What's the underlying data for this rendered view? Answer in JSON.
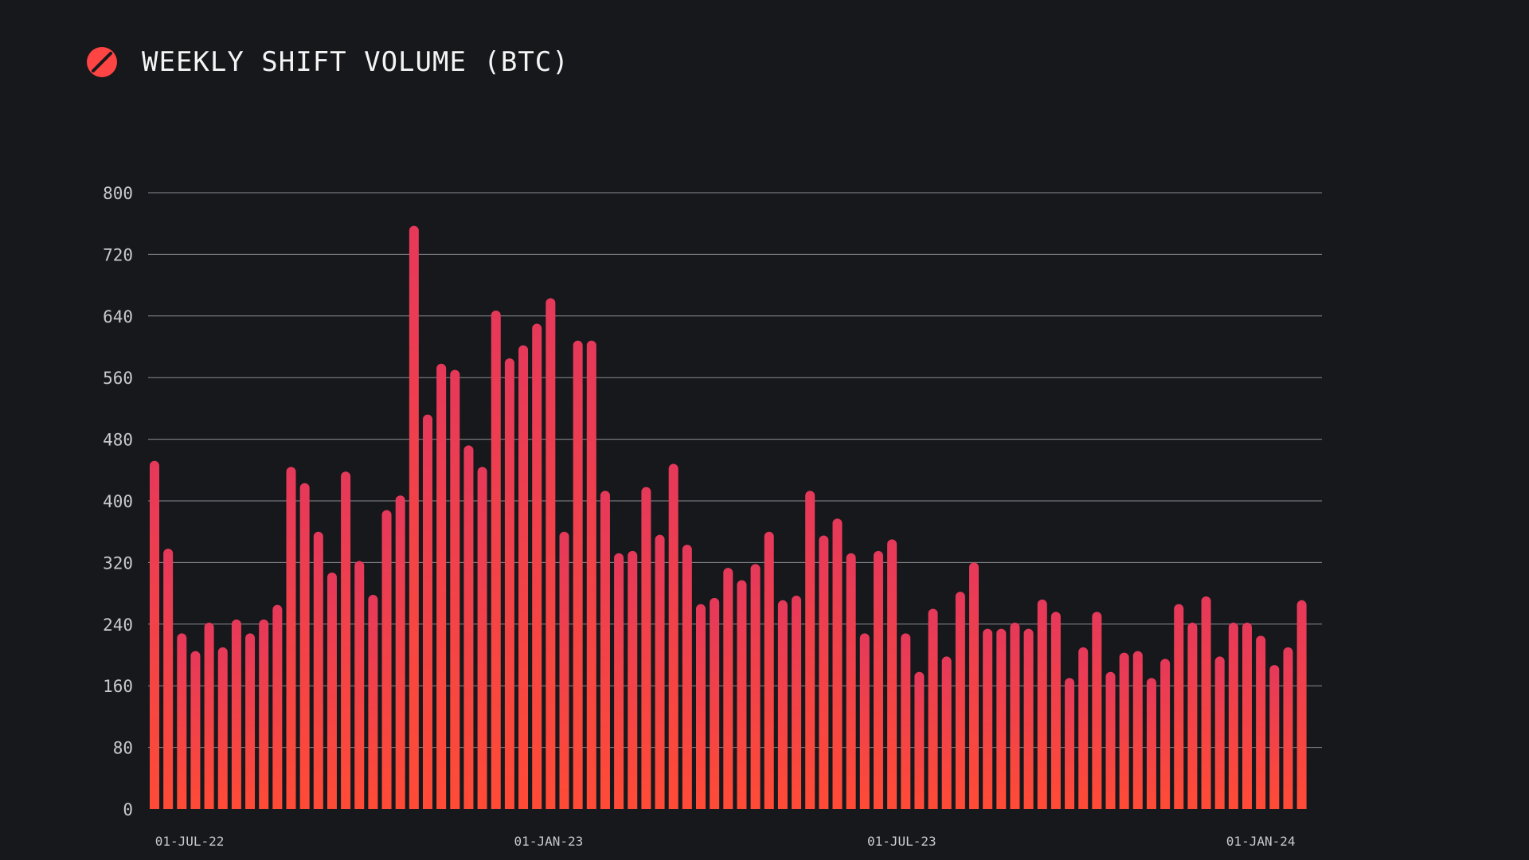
{
  "header": {
    "title": "WEEKLY SHIFT VOLUME (BTC)",
    "logo_icon": "slashed-circle-logo-icon"
  },
  "colors": {
    "background": "#17181c",
    "bar_top": "#e6395a",
    "bar_bottom": "#ff4b36",
    "gridline": "#8a8c92",
    "label": "#c8c9cc",
    "title": "#f4f4f4",
    "logo": "#ff4444"
  },
  "chart_data": {
    "type": "bar",
    "title": "WEEKLY SHIFT VOLUME (BTC)",
    "xlabel": "",
    "ylabel": "",
    "ylim": [
      0,
      800
    ],
    "yticks": [
      0,
      80,
      160,
      240,
      320,
      400,
      480,
      560,
      640,
      720,
      800
    ],
    "grid": true,
    "legend": "none",
    "x_start": "2022-06-13",
    "x_step_days": 7,
    "xtick_labels": [
      {
        "label": "01-JUL-22",
        "date": "2022-07-01"
      },
      {
        "label": "01-JAN-23",
        "date": "2023-01-01"
      },
      {
        "label": "01-JUL-23",
        "date": "2023-07-01"
      },
      {
        "label": "01-JAN-24",
        "date": "2024-01-01"
      }
    ],
    "values": [
      452,
      338,
      228,
      205,
      242,
      210,
      246,
      228,
      246,
      265,
      444,
      423,
      360,
      307,
      438,
      322,
      278,
      388,
      407,
      757,
      512,
      578,
      570,
      472,
      444,
      647,
      585,
      602,
      630,
      663,
      360,
      608,
      608,
      413,
      332,
      335,
      418,
      356,
      448,
      343,
      266,
      274,
      313,
      297,
      318,
      360,
      271,
      277,
      413,
      355,
      377,
      332,
      228,
      335,
      350,
      228,
      178,
      260,
      198,
      282,
      320,
      234,
      234,
      242,
      234,
      272,
      256,
      170,
      210,
      256,
      178,
      203,
      205,
      170,
      195,
      266,
      242,
      276,
      198,
      242,
      242,
      225,
      187,
      210,
      271
    ]
  }
}
